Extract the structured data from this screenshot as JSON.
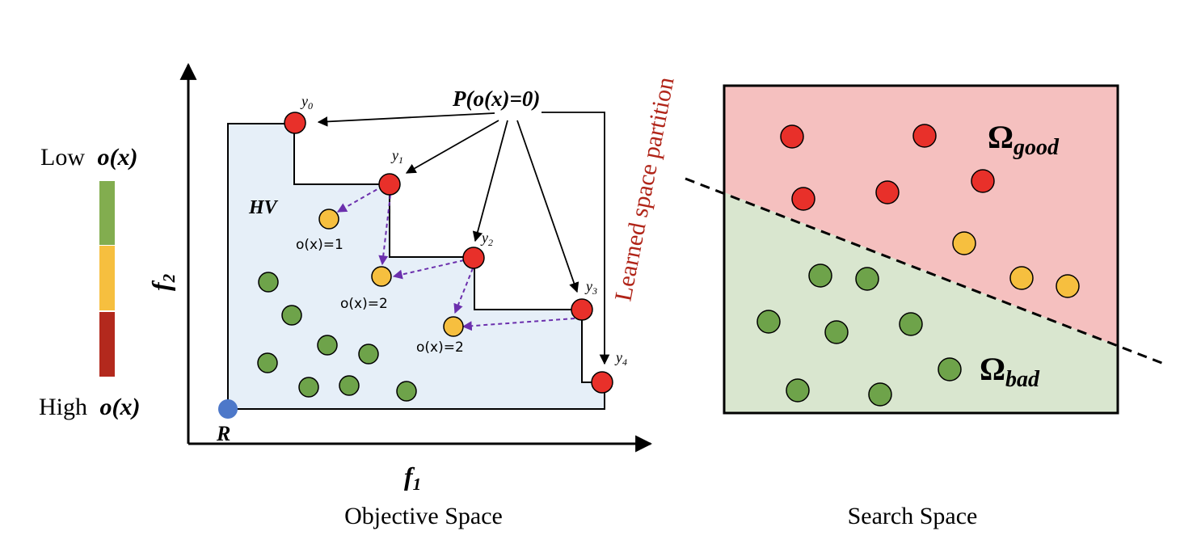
{
  "legend": {
    "low_word": "Low",
    "high_word": "High",
    "metric_label": "o(x)",
    "colors": [
      "#82ad4f",
      "#f6bf3f",
      "#b3291d"
    ]
  },
  "objective_space": {
    "caption": "Objective Space",
    "x_axis": "f",
    "x_axis_sub": "1",
    "y_axis": "f",
    "y_axis_sub": "2",
    "hv_label": "HV",
    "reference_label": "R",
    "pareto_label": "P(o(x)=0)",
    "pareto_points": [
      {
        "label": "y",
        "sub": "0"
      },
      {
        "label": "y",
        "sub": "1"
      },
      {
        "label": "y",
        "sub": "2"
      },
      {
        "label": "y",
        "sub": "3"
      },
      {
        "label": "y",
        "sub": "4"
      }
    ],
    "rank_labels": [
      "o(x)=1",
      "o(x)=2",
      "o(x)=2"
    ],
    "colors": {
      "hv_fill": "#e6eff8",
      "pareto": "#e8302a",
      "rank": "#f6bf3f",
      "dominated": "#6ea34a",
      "reference": "#4d78c9",
      "dashed_arrow": "#6b2fad"
    }
  },
  "search_space": {
    "caption": "Search Space",
    "partition_label": "Learned space partition",
    "good_label": "Ω",
    "good_sub": "good",
    "bad_label": "Ω",
    "bad_sub": "bad",
    "colors": {
      "good_region": "#f5c0bf",
      "bad_region": "#d9e6cf",
      "partition_text": "#b02418"
    }
  }
}
